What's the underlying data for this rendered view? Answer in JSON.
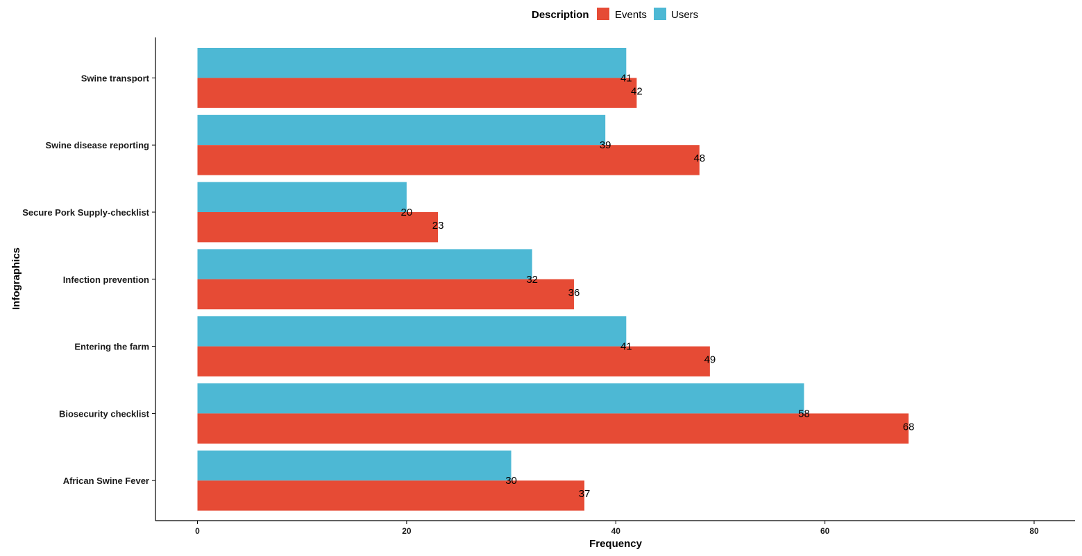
{
  "chart_data": {
    "type": "bar",
    "orientation": "horizontal",
    "title": "",
    "xlabel": "Frequency",
    "ylabel": "Infographics",
    "xlim": [
      0,
      80
    ],
    "xticks": [
      0,
      20,
      40,
      60,
      80
    ],
    "grid": false,
    "legend": {
      "title": "Description",
      "placement": "top",
      "entries": [
        "Events",
        "Users"
      ]
    },
    "categories": [
      "Swine transport",
      "Swine disease reporting",
      "Secure Pork Supply-checklist",
      "Infection prevention",
      "Entering the farm",
      "Biosecurity checklist",
      "African Swine Fever"
    ],
    "series": [
      {
        "name": "Users",
        "color": "#4DB8D4",
        "values": [
          41,
          39,
          20,
          32,
          41,
          58,
          30
        ]
      },
      {
        "name": "Events",
        "color": "#E64B35",
        "values": [
          42,
          48,
          23,
          36,
          49,
          68,
          37
        ]
      }
    ]
  }
}
